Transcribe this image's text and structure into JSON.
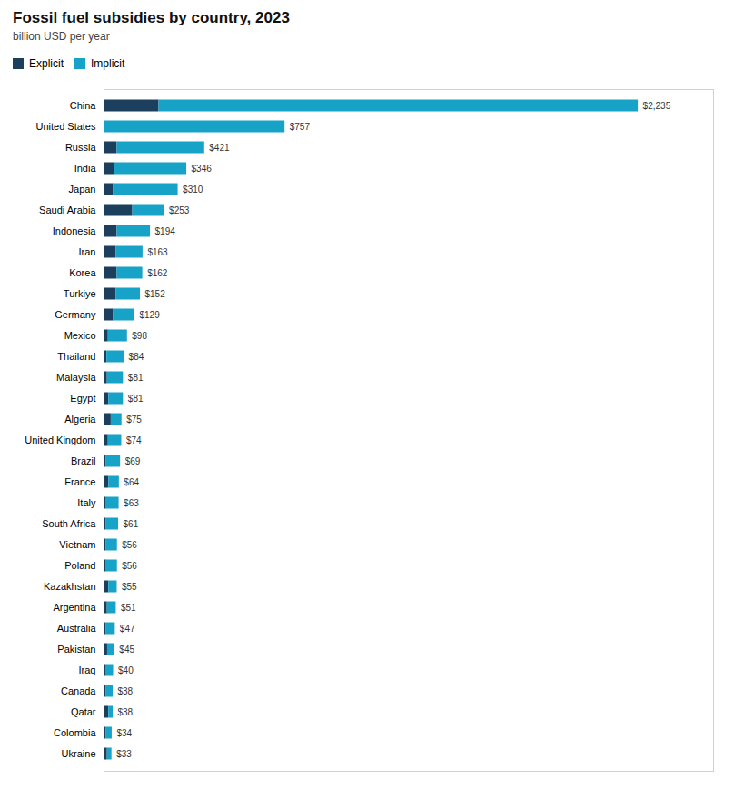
{
  "chart_data": {
    "type": "bar",
    "title": "Fossil fuel subsidies by country, 2023",
    "subtitle": "billion USD per year",
    "orientation": "horizontal",
    "stacked": true,
    "categories": [
      "China",
      "United States",
      "Russia",
      "India",
      "Japan",
      "Saudi Arabia",
      "Indonesia",
      "Iran",
      "Korea",
      "Turkiye",
      "Germany",
      "Mexico",
      "Thailand",
      "Malaysia",
      "Egypt",
      "Algeria",
      "United Kingdom",
      "Brazil",
      "France",
      "Italy",
      "South Africa",
      "Vietnam",
      "Poland",
      "Kazakhstan",
      "Argentina",
      "Australia",
      "Pakistan",
      "Iraq",
      "Canada",
      "Qatar",
      "Colombia",
      "Ukraine"
    ],
    "series": [
      {
        "name": "Explicit",
        "color": "#1c3f5e",
        "values": [
          230,
          0,
          55,
          45,
          40,
          120,
          55,
          50,
          55,
          50,
          40,
          18,
          12,
          14,
          20,
          30,
          18,
          8,
          20,
          10,
          8,
          8,
          10,
          20,
          14,
          8,
          15,
          10,
          8,
          20,
          8,
          14
        ]
      },
      {
        "name": "Implicit",
        "color": "#17a3c8",
        "values": [
          2005,
          757,
          366,
          301,
          270,
          133,
          139,
          113,
          107,
          102,
          89,
          80,
          72,
          67,
          61,
          45,
          56,
          61,
          44,
          53,
          53,
          48,
          46,
          35,
          37,
          39,
          30,
          30,
          30,
          18,
          26,
          19
        ]
      }
    ],
    "totals": [
      2235,
      757,
      421,
      346,
      310,
      253,
      194,
      163,
      162,
      152,
      129,
      98,
      84,
      81,
      81,
      75,
      74,
      69,
      64,
      63,
      61,
      56,
      56,
      55,
      51,
      47,
      45,
      40,
      38,
      38,
      34,
      33
    ],
    "total_labels": [
      "$2,235",
      "$757",
      "$421",
      "$346",
      "$310",
      "$253",
      "$194",
      "$163",
      "$162",
      "$152",
      "$129",
      "$98",
      "$84",
      "$81",
      "$81",
      "$75",
      "$74",
      "$69",
      "$64",
      "$63",
      "$61",
      "$56",
      "$56",
      "$55",
      "$51",
      "$47",
      "$45",
      "$40",
      "$38",
      "$38",
      "$34",
      "$33"
    ],
    "xlim": [
      0,
      2550
    ],
    "tick_labels": "y",
    "grid": false,
    "legend": "top-left"
  }
}
